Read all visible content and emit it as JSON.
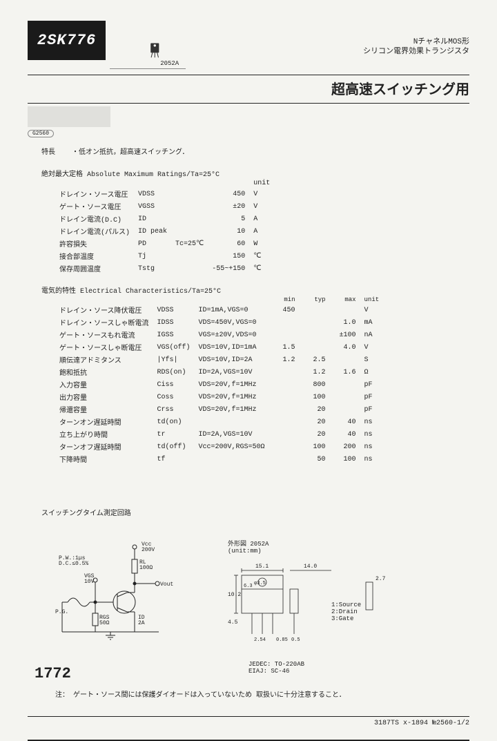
{
  "header": {
    "part_number": "2SK776",
    "package_code": "2052A",
    "type_line1": "NチャネルMOS形",
    "type_line2": "シリコン電界効果トランジスタ",
    "application": "超高速スイッチング用",
    "reg_code": "G2560"
  },
  "features": {
    "label": "特長",
    "text": "・低オン抵抗，超高速スイッチング．"
  },
  "abs_max": {
    "title": "絶対最大定格 Absolute Maximum Ratings/Ta=25°C",
    "unit_label": "unit",
    "rows": [
      {
        "jp": "ドレイン・ソース電圧",
        "sym": "VDSS",
        "cond": "",
        "val": "450",
        "unit": "V"
      },
      {
        "jp": "ゲート・ソース電圧",
        "sym": "VGSS",
        "cond": "",
        "val": "±20",
        "unit": "V"
      },
      {
        "jp": "ドレイン電流(D.C)",
        "sym": "ID",
        "cond": "",
        "val": "5",
        "unit": "A"
      },
      {
        "jp": "ドレイン電流(パルス)",
        "sym": "ID peak",
        "cond": "",
        "val": "10",
        "unit": "A"
      },
      {
        "jp": "許容損失",
        "sym": "PD",
        "cond": "Tc=25℃",
        "val": "60",
        "unit": "W"
      },
      {
        "jp": "接合部温度",
        "sym": "Tj",
        "cond": "",
        "val": "150",
        "unit": "℃"
      },
      {
        "jp": "保存周囲温度",
        "sym": "Tstg",
        "cond": "",
        "val": "-55~+150",
        "unit": "℃"
      }
    ]
  },
  "elec": {
    "title": "電気的特性 Electrical Characteristics/Ta=25°C",
    "hdr_min": "min",
    "hdr_typ": "typ",
    "hdr_max": "max",
    "hdr_unit": "unit",
    "rows": [
      {
        "jp": "ドレイン・ソース降伏電圧",
        "sym": "VDSS",
        "cond": "ID=1mA,VGS=0",
        "min": "450",
        "typ": "",
        "max": "",
        "unit": "V"
      },
      {
        "jp": "ドレイン・ソースしゃ断電流",
        "sym": "IDSS",
        "cond": "VDS=450V,VGS=0",
        "min": "",
        "typ": "",
        "max": "1.0",
        "unit": "mA"
      },
      {
        "jp": "ゲート・ソースもれ電流",
        "sym": "IGSS",
        "cond": "VGS=±20V,VDS=0",
        "min": "",
        "typ": "",
        "max": "±100",
        "unit": "nA"
      },
      {
        "jp": "ゲート・ソースしゃ断電圧",
        "sym": "VGS(off)",
        "cond": "VDS=10V,ID=1mA",
        "min": "1.5",
        "typ": "",
        "max": "4.0",
        "unit": "V"
      },
      {
        "jp": "順伝達アドミタンス",
        "sym": "|Yfs|",
        "cond": "VDS=10V,ID=2A",
        "min": "1.2",
        "typ": "2.5",
        "max": "",
        "unit": "S"
      },
      {
        "jp": "飽和抵抗",
        "sym": "RDS(on)",
        "cond": "ID=2A,VGS=10V",
        "min": "",
        "typ": "1.2",
        "max": "1.6",
        "unit": "Ω"
      },
      {
        "jp": "入力容量",
        "sym": "Ciss",
        "cond": "VDS=20V,f=1MHz",
        "min": "",
        "typ": "800",
        "max": "",
        "unit": "pF"
      },
      {
        "jp": "出力容量",
        "sym": "Coss",
        "cond": "VDS=20V,f=1MHz",
        "min": "",
        "typ": "100",
        "max": "",
        "unit": "pF"
      },
      {
        "jp": "帰還容量",
        "sym": "Crss",
        "cond": "VDS=20V,f=1MHz",
        "min": "",
        "typ": "20",
        "max": "",
        "unit": "pF"
      },
      {
        "jp": "ターンオン遅延時間",
        "sym": "td(on)",
        "cond": "",
        "min": "",
        "typ": "20",
        "max": "40",
        "unit": "ns"
      },
      {
        "jp": "立ち上がり時間",
        "sym": "tr",
        "cond": "ID=2A,VGS=10V",
        "min": "",
        "typ": "20",
        "max": "40",
        "unit": "ns"
      },
      {
        "jp": "ターンオフ遅延時間",
        "sym": "td(off)",
        "cond": "Vcc=200V,RGS=50Ω",
        "min": "",
        "typ": "100",
        "max": "200",
        "unit": "ns"
      },
      {
        "jp": "下降時間",
        "sym": "tf",
        "cond": "",
        "min": "",
        "typ": "50",
        "max": "100",
        "unit": "ns"
      }
    ]
  },
  "diagram": {
    "circuit_title": "スイッチングタイム測定回路",
    "circuit_labels": {
      "vcc": "Vcc\n200V",
      "pw": "P.W.:1μs\nD.C.≤0.5%",
      "rl": "RL\n100Ω",
      "vgs": "VGS\n10V",
      "vout": "Vout",
      "pg": "P.G.",
      "rgs": "RGS\n50Ω",
      "id": "ID\n2A"
    },
    "pkg_title": "外形図 2052A\n(unit:mm)",
    "pkg_dims": {
      "w": "15.1",
      "body": "6.3",
      "lead": "14.0",
      "t": "2.7",
      "h": "10.2",
      "hole": "φ3.5",
      "pitch": "2.54",
      "tl": "0.85",
      "tw": "0.5",
      "h2": "4.5"
    },
    "pkg_std": "JEDEC: TO-220AB\nEIAJ: SC-46",
    "pins": "1:Source\n2:Drain\n3:Gate"
  },
  "note": {
    "label": "注：",
    "text": "ゲート・ソース間には保護ダイオードは入っていないため 取扱いに十分注意すること．"
  },
  "footer": {
    "right": "3187TS x-1894 №2560-1/2",
    "page": "1772"
  },
  "colors": {
    "bg": "#f4f4f0",
    "text": "#222222",
    "badge_bg": "#1a1a1a",
    "strip": "#e0e0dc"
  }
}
